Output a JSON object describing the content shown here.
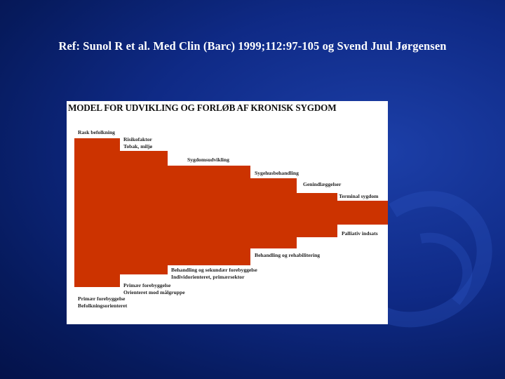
{
  "slide": {
    "reference": "Ref: Sunol R et al. Med Clin (Barc) 1999;112:97-105 og Svend Juul Jørgensen"
  },
  "diagram": {
    "title": "MODEL FOR UDVIKLING OG FORLØB AF KRONISK SYGDOM",
    "top_labels": {
      "rask_befolkning": "Rask befolkning",
      "risikofaktor_1": "Risikofaktor",
      "risikofaktor_2": "Tobak,  miljø",
      "sygdomsudvikling": "Sygdomsudvikling",
      "sygehusbehandling": "Sygehusbehandling",
      "genindlaeggelser": "Genindlæggelser",
      "terminal_sygdom": "Terminal sygdom"
    },
    "bottom_labels": {
      "primaer_1": "Primær forebyggelse",
      "primaer_2": "Befolkningsorienteret",
      "primaer_mal_1": "Primær forebyggelse",
      "primaer_mal_2": "Orienteret mod målgruppe",
      "behandling_1": "Behandling og sekundær forebyggelse",
      "behandling_2": "Individorienteret, primærsektor",
      "rehabilitering": "Behandling og rehabilitering",
      "palliativ": "Palliativ indsats"
    },
    "colors": {
      "block": "#cc3300",
      "background": "#ffffff",
      "slide_bg": "#0f2a86"
    }
  }
}
